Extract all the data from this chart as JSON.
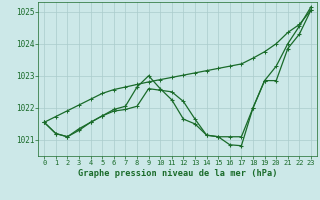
{
  "title": "Graphe pression niveau de la mer (hPa)",
  "bg_color": "#cce8e8",
  "grid_color": "#aacccc",
  "line_color": "#1a6b2a",
  "x_ticks": [
    0,
    1,
    2,
    3,
    4,
    5,
    6,
    7,
    8,
    9,
    10,
    11,
    12,
    13,
    14,
    15,
    16,
    17,
    18,
    19,
    20,
    21,
    22,
    23
  ],
  "ylim": [
    1020.5,
    1025.3
  ],
  "yticks": [
    1021,
    1022,
    1023,
    1024,
    1025
  ],
  "series_diagonal": [
    1021.55,
    1021.73,
    1021.91,
    1022.09,
    1022.27,
    1022.45,
    1022.57,
    1022.65,
    1022.73,
    1022.81,
    1022.88,
    1022.95,
    1023.02,
    1023.09,
    1023.16,
    1023.23,
    1023.3,
    1023.37,
    1023.55,
    1023.75,
    1024.0,
    1024.35,
    1024.6,
    1025.05
  ],
  "series_zigzag": [
    1021.55,
    1021.2,
    1021.1,
    1021.3,
    1021.55,
    1021.75,
    1021.95,
    1022.05,
    1022.65,
    1023.0,
    1022.6,
    1022.25,
    1021.65,
    1021.5,
    1021.15,
    1021.1,
    1020.85,
    1020.82,
    1022.0,
    1022.85,
    1022.85,
    1023.85,
    1024.3,
    1025.05
  ],
  "series_middle": [
    1021.55,
    1021.2,
    1021.1,
    1021.35,
    1021.55,
    1021.75,
    1021.9,
    1021.95,
    1022.05,
    1022.6,
    1022.55,
    1022.5,
    1022.2,
    1021.65,
    1021.15,
    1021.1,
    1021.1,
    1021.1,
    1022.0,
    1022.85,
    1023.3,
    1024.0,
    1024.55,
    1025.15
  ]
}
